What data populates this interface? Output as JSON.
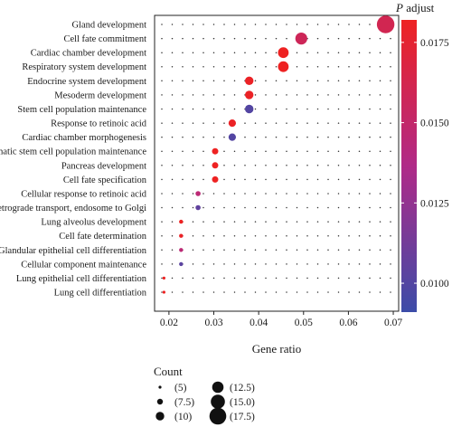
{
  "chart_data": {
    "type": "scatter",
    "xlabel": "Gene ratio",
    "x_ticks": [
      0.02,
      0.03,
      0.04,
      0.05,
      0.06,
      0.07
    ],
    "x_tick_labels": [
      "0.02",
      "0.03",
      "0.04",
      "0.05",
      "0.06",
      "0.07"
    ],
    "xlim": [
      0.0168,
      0.0712
    ],
    "grid": "dotted",
    "categories": [
      "Gland development",
      "Cell fate commitment",
      "Cardiac chamber development",
      "Respiratory system development",
      "Endocrine system development",
      "Mesoderm development",
      "Stem cell population maintenance",
      "Response to retinoic acid",
      "Cardiac chamber morphogenesis",
      "Somatic stem cell population maintenance",
      "Pancreas development",
      "Cell fate specification",
      "Cellular response to retinoic acid",
      "Retrograde transport, endosome to Golgi",
      "Lung alveolus development",
      "Cell fate determination",
      "Glandular epithelial cell differentiation",
      "Cellular component maintenance",
      "Lung epithelial cell differentiation",
      "Lung cell differentiation"
    ],
    "points": [
      {
        "category": "Gland development",
        "gene_ratio": 0.0683,
        "count": 18,
        "p_adjust": 0.0112
      },
      {
        "category": "Cell fate commitment",
        "gene_ratio": 0.0495,
        "count": 13,
        "p_adjust": 0.0115
      },
      {
        "category": "Cardiac chamber development",
        "gene_ratio": 0.0455,
        "count": 12,
        "p_adjust": 0.0091
      },
      {
        "category": "Respiratory system development",
        "gene_ratio": 0.0455,
        "count": 12,
        "p_adjust": 0.0091
      },
      {
        "category": "Endocrine system development",
        "gene_ratio": 0.0379,
        "count": 10,
        "p_adjust": 0.0093
      },
      {
        "category": "Mesoderm development",
        "gene_ratio": 0.0379,
        "count": 10,
        "p_adjust": 0.0093
      },
      {
        "category": "Stem cell population maintenance",
        "gene_ratio": 0.0379,
        "count": 10,
        "p_adjust": 0.0173
      },
      {
        "category": "Response to retinoic acid",
        "gene_ratio": 0.0341,
        "count": 9,
        "p_adjust": 0.0093
      },
      {
        "category": "Cardiac chamber morphogenesis",
        "gene_ratio": 0.0341,
        "count": 9,
        "p_adjust": 0.0173
      },
      {
        "category": "Somatic stem cell population maintenance",
        "gene_ratio": 0.0303,
        "count": 8,
        "p_adjust": 0.0091
      },
      {
        "category": "Pancreas development",
        "gene_ratio": 0.0303,
        "count": 8,
        "p_adjust": 0.0091
      },
      {
        "category": "Cell fate specification",
        "gene_ratio": 0.0303,
        "count": 8,
        "p_adjust": 0.0091
      },
      {
        "category": "Cellular response to retinoic acid",
        "gene_ratio": 0.0265,
        "count": 7,
        "p_adjust": 0.0128
      },
      {
        "category": "Retrograde transport, endosome to Golgi",
        "gene_ratio": 0.0265,
        "count": 7,
        "p_adjust": 0.0168
      },
      {
        "category": "Lung alveolus development",
        "gene_ratio": 0.0227,
        "count": 6,
        "p_adjust": 0.0091
      },
      {
        "category": "Cell fate determination",
        "gene_ratio": 0.0227,
        "count": 6,
        "p_adjust": 0.0093
      },
      {
        "category": "Glandular epithelial cell differentiation",
        "gene_ratio": 0.0227,
        "count": 6,
        "p_adjust": 0.0128
      },
      {
        "category": "Cellular component maintenance",
        "gene_ratio": 0.0227,
        "count": 6,
        "p_adjust": 0.017
      },
      {
        "category": "Lung epithelial cell differentiation",
        "gene_ratio": 0.0189,
        "count": 5,
        "p_adjust": 0.0091
      },
      {
        "category": "Lung cell differentiation",
        "gene_ratio": 0.0189,
        "count": 5,
        "p_adjust": 0.0091
      }
    ],
    "size_legend": {
      "title": "Count",
      "entries": [
        {
          "label": "(5)",
          "value": 5
        },
        {
          "label": "(7.5)",
          "value": 7.5
        },
        {
          "label": "(10)",
          "value": 10
        },
        {
          "label": "(12.5)",
          "value": 12.5
        },
        {
          "label": "(15.0)",
          "value": 15
        },
        {
          "label": "(17.5)",
          "value": 17.5
        }
      ]
    },
    "color_legend": {
      "title_var": "P",
      "title_rest": " adjust",
      "range": [
        0.0091,
        0.0182
      ],
      "ticks": [
        0.01,
        0.0125,
        0.015,
        0.0175
      ],
      "tick_labels": [
        "0.0100",
        "0.0125",
        "0.0150",
        "0.0175"
      ],
      "low_color": "#ee2222",
      "mid_color": "#b02a88",
      "high_color": "#3c4ca8",
      "placement": "right"
    }
  }
}
